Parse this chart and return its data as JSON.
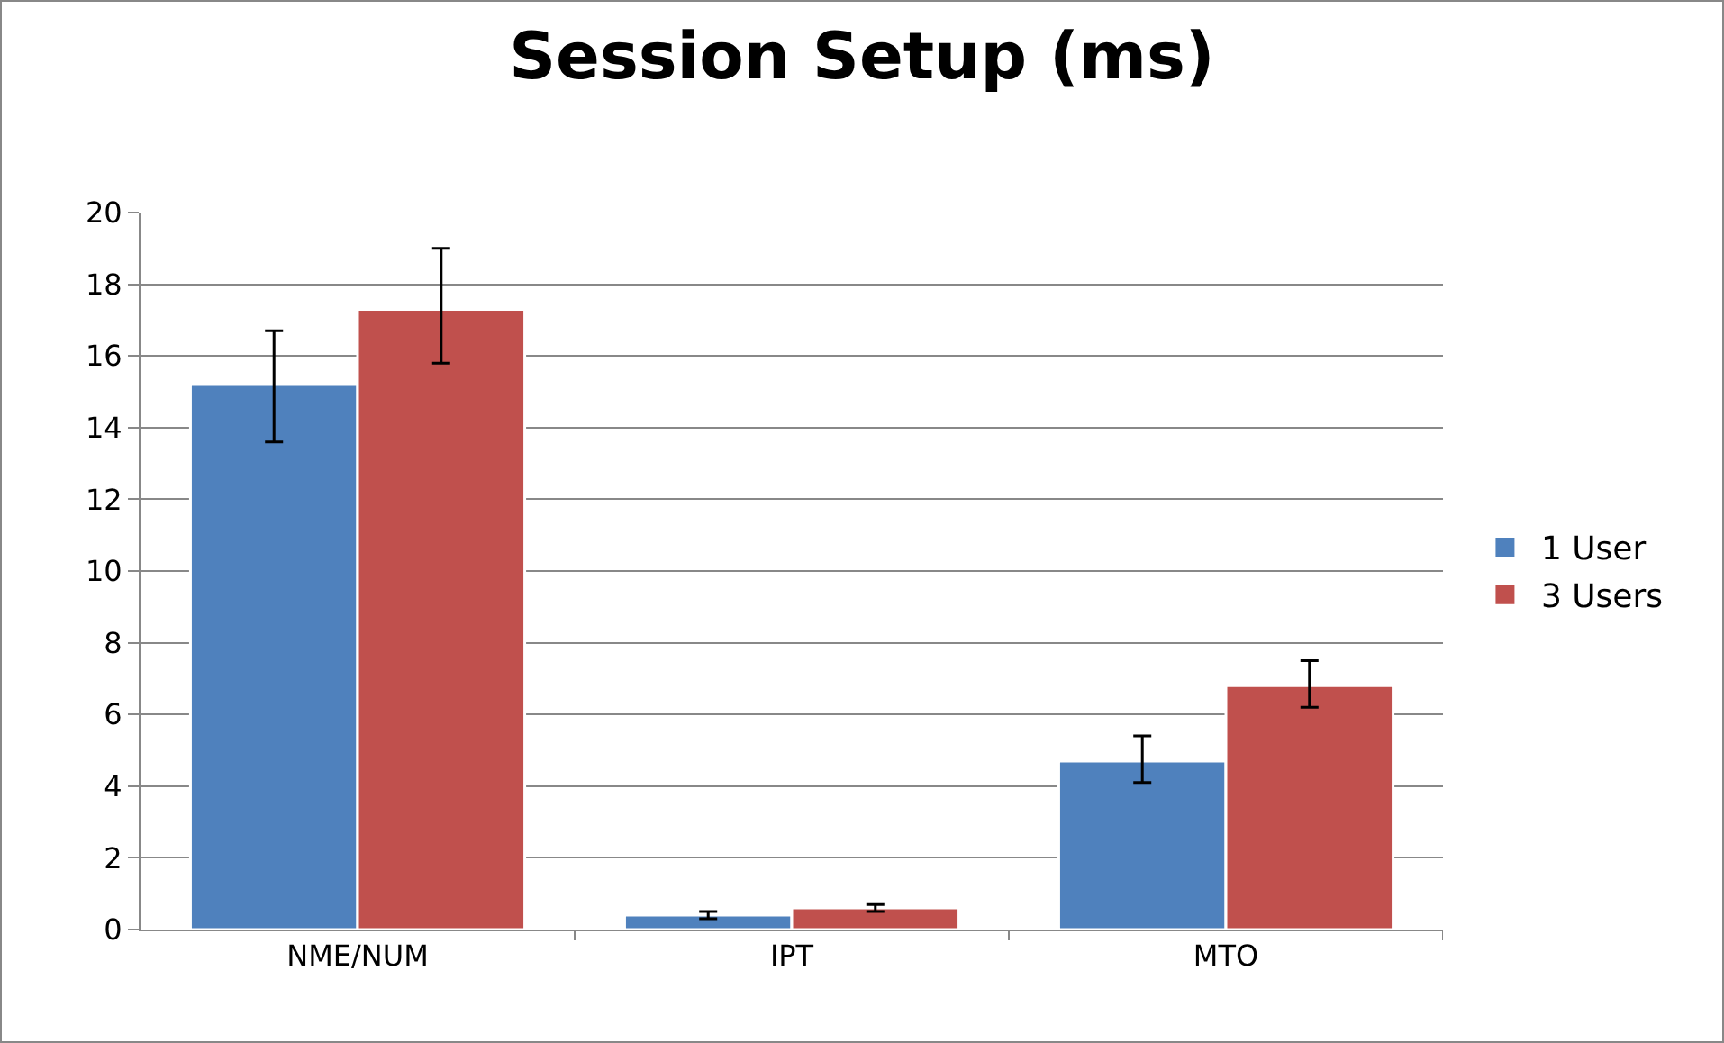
{
  "chart_data": {
    "type": "bar",
    "title": "Session Setup (ms)",
    "categories": [
      "NME/NUM",
      "IPT",
      "MTO"
    ],
    "series": [
      {
        "name": "1 User",
        "color": "#4f81bd",
        "values": [
          15.2,
          0.4,
          4.7
        ],
        "errors": [
          [
            13.6,
            16.7
          ],
          [
            0.3,
            0.5
          ],
          [
            4.1,
            5.4
          ]
        ]
      },
      {
        "name": "3 Users",
        "color": "#c0504d",
        "values": [
          17.3,
          0.6,
          6.8
        ],
        "errors": [
          [
            15.8,
            19.0
          ],
          [
            0.5,
            0.7
          ],
          [
            6.2,
            7.5
          ]
        ]
      }
    ],
    "ylim": [
      0,
      20
    ],
    "yticks": [
      0,
      2,
      4,
      6,
      8,
      10,
      12,
      14,
      16,
      18,
      20
    ],
    "grid": "y",
    "legend": "right"
  }
}
